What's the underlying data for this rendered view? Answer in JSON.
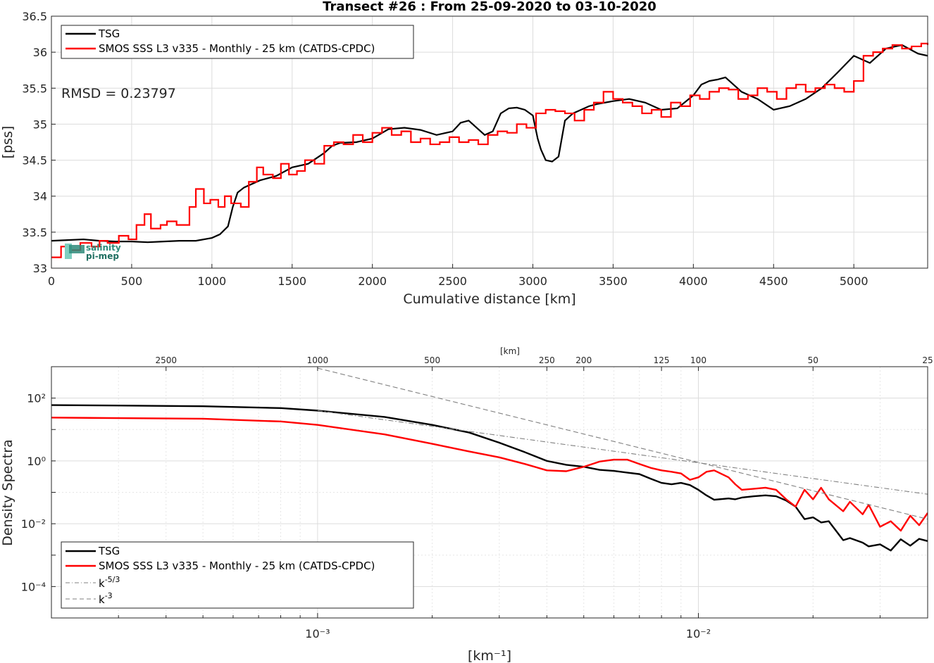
{
  "logo": {
    "line1": "salinity",
    "line2": "pi-mep"
  },
  "chart_data": [
    {
      "type": "line",
      "title": "Transect #26 : From 25-09-2020 to 03-10-2020",
      "xlabel": "Cumulative distance [km]",
      "ylabel": "[pss]",
      "xlim": [
        0,
        5460
      ],
      "ylim": [
        33,
        36.5
      ],
      "xticks": [
        0,
        500,
        1000,
        1500,
        2000,
        2500,
        3000,
        3500,
        4000,
        4500,
        5000
      ],
      "yticks": [
        33,
        33.5,
        34,
        34.5,
        35,
        35.5,
        36,
        36.5
      ],
      "grid": true,
      "legend_position": "top-left",
      "annotation": "RMSD = 0.23797",
      "series": [
        {
          "name": "TSG",
          "color": "#000000",
          "style": "solid",
          "x": [
            0,
            100,
            200,
            300,
            400,
            500,
            600,
            700,
            800,
            900,
            1000,
            1050,
            1100,
            1130,
            1160,
            1200,
            1300,
            1400,
            1500,
            1600,
            1700,
            1750,
            1800,
            1900,
            2000,
            2100,
            2200,
            2300,
            2400,
            2500,
            2550,
            2600,
            2650,
            2700,
            2750,
            2800,
            2850,
            2900,
            2950,
            3000,
            3030,
            3050,
            3080,
            3120,
            3160,
            3200,
            3250,
            3300,
            3350,
            3400,
            3450,
            3500,
            3600,
            3700,
            3800,
            3900,
            4000,
            4050,
            4100,
            4150,
            4200,
            4300,
            4400,
            4500,
            4600,
            4700,
            4800,
            4900,
            5000,
            5050,
            5100,
            5200,
            5300,
            5400,
            5460
          ],
          "y": [
            33.38,
            33.39,
            33.4,
            33.38,
            33.37,
            33.37,
            33.36,
            33.37,
            33.38,
            33.38,
            33.42,
            33.47,
            33.58,
            33.85,
            34.05,
            34.12,
            34.22,
            34.28,
            34.4,
            34.45,
            34.6,
            34.7,
            34.74,
            34.75,
            34.8,
            34.93,
            34.95,
            34.92,
            34.85,
            34.9,
            35.02,
            35.05,
            34.95,
            34.85,
            34.9,
            35.15,
            35.22,
            35.23,
            35.2,
            35.12,
            34.8,
            34.65,
            34.5,
            34.48,
            34.55,
            35.05,
            35.15,
            35.2,
            35.25,
            35.28,
            35.3,
            35.32,
            35.35,
            35.3,
            35.2,
            35.22,
            35.4,
            35.55,
            35.6,
            35.62,
            35.65,
            35.45,
            35.35,
            35.2,
            35.25,
            35.35,
            35.5,
            35.72,
            35.95,
            35.9,
            35.85,
            36.05,
            36.1,
            35.98,
            35.95
          ]
        },
        {
          "name": "SMOS SSS L3 v335 - Monthly - 25 km (CATDS-CPDC)",
          "color": "#ff0000",
          "style": "step",
          "x": [
            0,
            60,
            120,
            180,
            250,
            300,
            350,
            420,
            480,
            530,
            580,
            620,
            680,
            720,
            780,
            860,
            900,
            950,
            990,
            1040,
            1080,
            1120,
            1180,
            1230,
            1280,
            1320,
            1380,
            1430,
            1480,
            1530,
            1580,
            1640,
            1700,
            1760,
            1820,
            1880,
            1940,
            2000,
            2060,
            2120,
            2180,
            2240,
            2300,
            2360,
            2420,
            2480,
            2540,
            2600,
            2660,
            2720,
            2780,
            2840,
            2900,
            2960,
            3020,
            3080,
            3140,
            3200,
            3260,
            3320,
            3380,
            3440,
            3500,
            3560,
            3620,
            3680,
            3740,
            3800,
            3860,
            3920,
            3980,
            4040,
            4100,
            4160,
            4220,
            4280,
            4340,
            4400,
            4460,
            4520,
            4580,
            4640,
            4700,
            4760,
            4820,
            4880,
            4940,
            5000,
            5060,
            5120,
            5180,
            5240,
            5300,
            5360,
            5420,
            5460
          ],
          "y": [
            33.15,
            33.3,
            33.25,
            33.35,
            33.3,
            33.38,
            33.35,
            33.45,
            33.4,
            33.6,
            33.75,
            33.55,
            33.6,
            33.65,
            33.6,
            33.85,
            34.1,
            33.9,
            33.95,
            33.85,
            34.0,
            33.9,
            33.85,
            34.2,
            34.4,
            34.3,
            34.25,
            34.45,
            34.3,
            34.35,
            34.5,
            34.45,
            34.7,
            34.75,
            34.72,
            34.85,
            34.75,
            34.88,
            34.95,
            34.85,
            34.9,
            34.75,
            34.8,
            34.72,
            34.75,
            34.82,
            34.75,
            34.78,
            34.72,
            34.85,
            34.9,
            34.88,
            35.0,
            34.95,
            35.15,
            35.2,
            35.18,
            35.15,
            35.05,
            35.2,
            35.3,
            35.45,
            35.35,
            35.3,
            35.25,
            35.15,
            35.2,
            35.1,
            35.3,
            35.25,
            35.4,
            35.35,
            35.45,
            35.5,
            35.48,
            35.35,
            35.4,
            35.5,
            35.45,
            35.35,
            35.5,
            35.55,
            35.45,
            35.5,
            35.55,
            35.5,
            35.45,
            35.6,
            35.95,
            36.0,
            36.05,
            36.1,
            36.05,
            36.08,
            36.12,
            36.1
          ]
        }
      ]
    },
    {
      "type": "line",
      "xlabel": "[km⁻¹]",
      "ylabel": "Density Spectra",
      "top_axis_label": "[km]",
      "top_ticks": [
        2500,
        1000,
        500,
        250,
        200,
        125,
        100,
        50,
        25
      ],
      "x_scale": "log",
      "y_scale": "log",
      "xlim": [
        0.0002,
        0.04
      ],
      "ylim": [
        1e-05,
        1000
      ],
      "xticks": [
        "10⁻³",
        "10⁻²"
      ],
      "yticks": [
        "10²",
        "10⁰",
        "10⁻²",
        "10⁻⁴"
      ],
      "grid": true,
      "legend_position": "bottom-left",
      "series": [
        {
          "name": "TSG",
          "color": "#000000",
          "style": "solid",
          "x": [
            0.0002,
            0.0003,
            0.0005,
            0.0008,
            0.001,
            0.0015,
            0.002,
            0.0025,
            0.003,
            0.0035,
            0.004,
            0.0045,
            0.005,
            0.0055,
            0.006,
            0.007,
            0.0075,
            0.008,
            0.0085,
            0.009,
            0.0095,
            0.01,
            0.0105,
            0.011,
            0.012,
            0.0125,
            0.013,
            0.014,
            0.015,
            0.016,
            0.017,
            0.018,
            0.019,
            0.02,
            0.021,
            0.022,
            0.024,
            0.025,
            0.027,
            0.028,
            0.03,
            0.032,
            0.034,
            0.036,
            0.038,
            0.04
          ],
          "y": [
            60,
            58,
            55,
            48,
            40,
            25,
            14,
            8,
            3.8,
            1.9,
            1.0,
            0.75,
            0.65,
            0.52,
            0.48,
            0.38,
            0.27,
            0.2,
            0.18,
            0.2,
            0.17,
            0.12,
            0.08,
            0.058,
            0.064,
            0.06,
            0.068,
            0.075,
            0.08,
            0.075,
            0.055,
            0.035,
            0.014,
            0.016,
            0.011,
            0.012,
            0.003,
            0.0035,
            0.0025,
            0.0019,
            0.0022,
            0.0014,
            0.0032,
            0.002,
            0.0033,
            0.0028
          ]
        },
        {
          "name": "SMOS SSS L3 v335 - Monthly - 25 km (CATDS-CPDC)",
          "color": "#ff0000",
          "style": "solid",
          "x": [
            0.0002,
            0.0003,
            0.0005,
            0.0008,
            0.001,
            0.0015,
            0.002,
            0.0025,
            0.003,
            0.0035,
            0.004,
            0.0045,
            0.005,
            0.0055,
            0.006,
            0.0065,
            0.007,
            0.0075,
            0.008,
            0.0085,
            0.009,
            0.0095,
            0.01,
            0.0105,
            0.011,
            0.012,
            0.0125,
            0.013,
            0.014,
            0.015,
            0.016,
            0.017,
            0.018,
            0.019,
            0.02,
            0.021,
            0.022,
            0.024,
            0.025,
            0.027,
            0.028,
            0.03,
            0.032,
            0.034,
            0.036,
            0.038,
            0.04
          ],
          "y": [
            24,
            23,
            22,
            18,
            14,
            7,
            3.5,
            2.0,
            1.3,
            0.8,
            0.5,
            0.47,
            0.65,
            0.95,
            1.1,
            1.1,
            0.8,
            0.6,
            0.5,
            0.45,
            0.4,
            0.25,
            0.3,
            0.45,
            0.5,
            0.3,
            0.18,
            0.12,
            0.13,
            0.14,
            0.12,
            0.06,
            0.035,
            0.12,
            0.06,
            0.14,
            0.06,
            0.025,
            0.05,
            0.02,
            0.04,
            0.008,
            0.012,
            0.006,
            0.018,
            0.009,
            0.022
          ]
        },
        {
          "name": "k^-5/3",
          "color": "#808080",
          "style": "dashdot",
          "x": [
            0.001,
            0.04
          ],
          "y": [
            40,
            0.087
          ]
        },
        {
          "name": "k^-3",
          "color": "#808080",
          "style": "dashed",
          "x": [
            0.001,
            0.04
          ],
          "y": [
            900,
            0.014
          ]
        }
      ]
    }
  ]
}
